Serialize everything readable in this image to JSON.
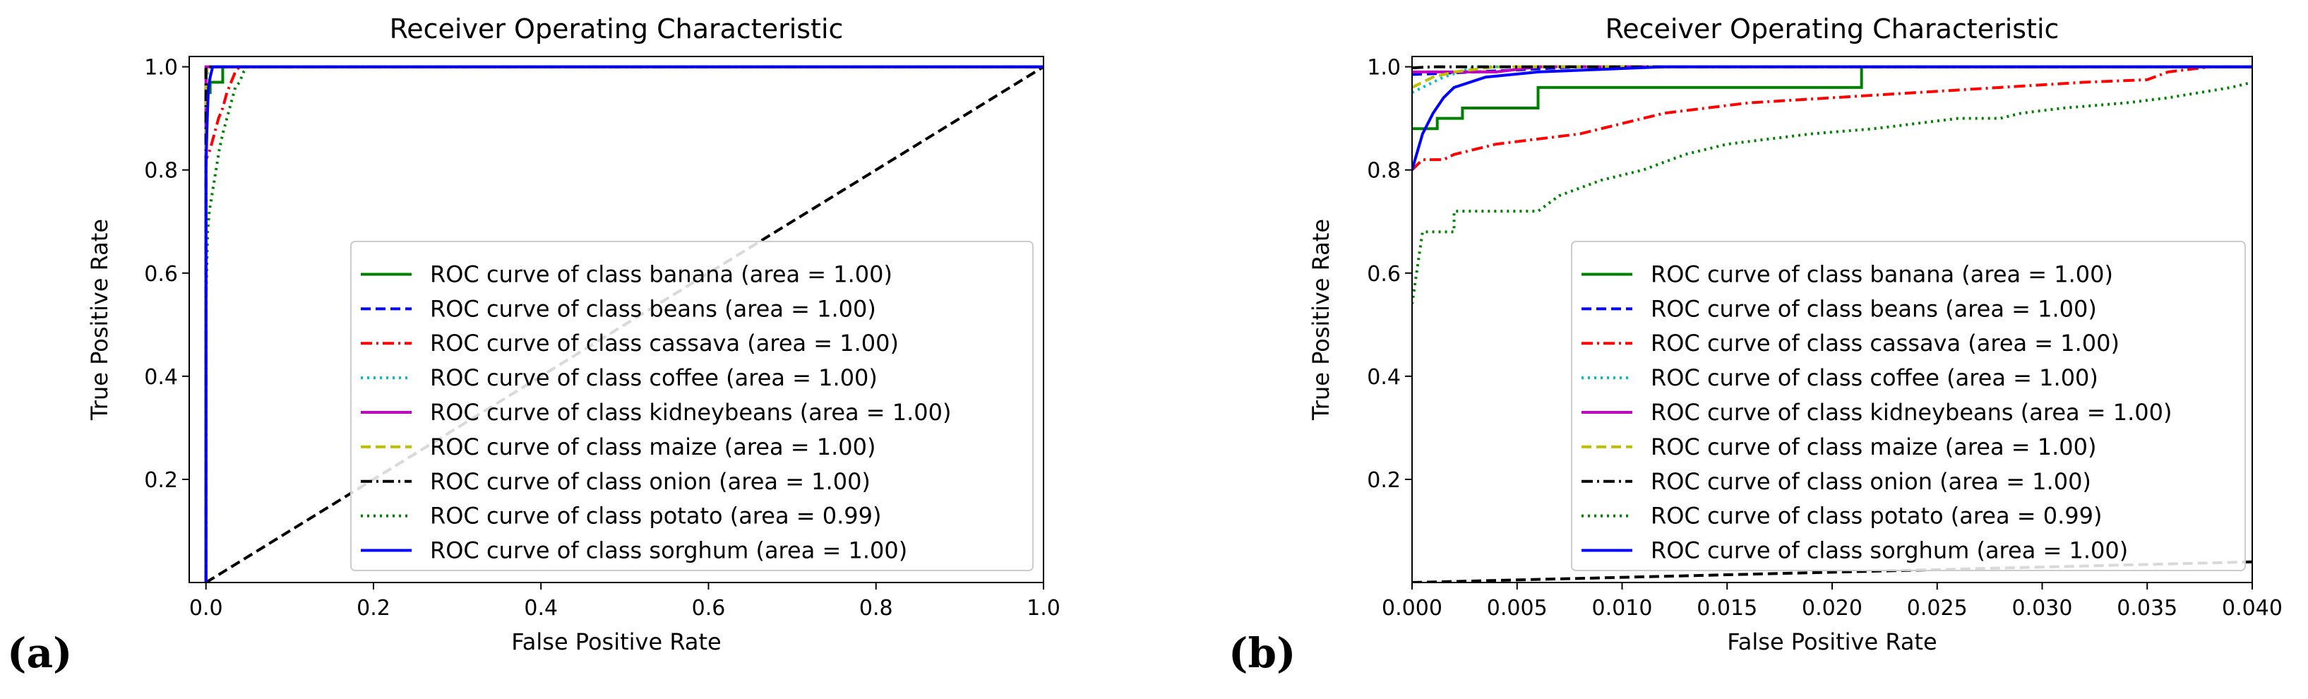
{
  "chart_data": [
    {
      "panel_label": "(a)",
      "type": "line",
      "title": "Receiver Operating Characteristic",
      "xlabel": "False Positive Rate",
      "ylabel": "True Positive Rate",
      "xlim": [
        -0.02,
        1.0
      ],
      "ylim": [
        0.0,
        1.02
      ],
      "xticks": [
        0.0,
        0.2,
        0.4,
        0.6,
        0.8,
        1.0
      ],
      "xtick_labels": [
        "0.0",
        "0.2",
        "0.4",
        "0.6",
        "0.8",
        "1.0"
      ],
      "yticks": [
        0.2,
        0.4,
        0.6,
        0.8,
        1.0
      ],
      "ytick_labels": [
        "0.2",
        "0.4",
        "0.6",
        "0.8",
        "1.0"
      ],
      "legend_position": "lower-right",
      "diagonal": {
        "name": "chance",
        "color": "#000000",
        "dash": "dashed",
        "points": [
          [
            0,
            0
          ],
          [
            1,
            1
          ]
        ]
      },
      "series": [
        {
          "name": "ROC curve of class banana (area = 1.00)",
          "color": "#008000",
          "dash": "solid",
          "points": [
            [
              0,
              0
            ],
            [
              0,
              0.95
            ],
            [
              0.005,
              0.95
            ],
            [
              0.005,
              0.97
            ],
            [
              0.02,
              0.97
            ],
            [
              0.02,
              1.0
            ],
            [
              1.0,
              1.0
            ]
          ]
        },
        {
          "name": "ROC curve of class beans (area = 1.00)",
          "color": "#0000ff",
          "dash": "dashed",
          "points": [
            [
              0,
              0
            ],
            [
              0,
              1.0
            ],
            [
              1.0,
              1.0
            ]
          ]
        },
        {
          "name": "ROC curve of class cassava (area = 1.00)",
          "color": "#ff0000",
          "dash": "dashdot",
          "points": [
            [
              0,
              0
            ],
            [
              0,
              0.82
            ],
            [
              0.005,
              0.84
            ],
            [
              0.01,
              0.87
            ],
            [
              0.015,
              0.9
            ],
            [
              0.02,
              0.92
            ],
            [
              0.025,
              0.95
            ],
            [
              0.03,
              0.97
            ],
            [
              0.035,
              0.99
            ],
            [
              0.04,
              1.0
            ],
            [
              1.0,
              1.0
            ]
          ]
        },
        {
          "name": "ROC curve of class coffee (area = 1.00)",
          "color": "#00bfbf",
          "dash": "dotted",
          "points": [
            [
              0,
              0
            ],
            [
              0,
              0.97
            ],
            [
              0.003,
              1.0
            ],
            [
              1.0,
              1.0
            ]
          ]
        },
        {
          "name": "ROC curve of class kidneybeans (area = 1.00)",
          "color": "#bf00bf",
          "dash": "solid",
          "points": [
            [
              0,
              0
            ],
            [
              0,
              1.0
            ],
            [
              1.0,
              1.0
            ]
          ]
        },
        {
          "name": "ROC curve of class maize (area = 1.00)",
          "color": "#bfbf00",
          "dash": "dashed",
          "points": [
            [
              0,
              0
            ],
            [
              0,
              0.98
            ],
            [
              0.002,
              1.0
            ],
            [
              1.0,
              1.0
            ]
          ]
        },
        {
          "name": "ROC curve of class onion (area = 1.00)",
          "color": "#000000",
          "dash": "dashdot",
          "points": [
            [
              0,
              0
            ],
            [
              0,
              1.0
            ],
            [
              1.0,
              1.0
            ]
          ]
        },
        {
          "name": "ROC curve of class potato (area = 0.99)",
          "color": "#008000",
          "dash": "dotted",
          "points": [
            [
              0,
              0
            ],
            [
              0,
              0.54
            ],
            [
              0.002,
              0.68
            ],
            [
              0.004,
              0.72
            ],
            [
              0.008,
              0.76
            ],
            [
              0.012,
              0.8
            ],
            [
              0.016,
              0.84
            ],
            [
              0.02,
              0.87
            ],
            [
              0.025,
              0.9
            ],
            [
              0.03,
              0.93
            ],
            [
              0.035,
              0.96
            ],
            [
              0.04,
              0.97
            ],
            [
              0.045,
              0.99
            ],
            [
              0.05,
              1.0
            ],
            [
              1.0,
              1.0
            ]
          ]
        },
        {
          "name": "ROC curve of class sorghum (area = 1.00)",
          "color": "#0000ff",
          "dash": "solid",
          "points": [
            [
              0,
              0
            ],
            [
              0,
              0.8
            ],
            [
              0.001,
              0.87
            ],
            [
              0.002,
              0.92
            ],
            [
              0.003,
              0.96
            ],
            [
              0.005,
              0.98
            ],
            [
              0.008,
              1.0
            ],
            [
              1.0,
              1.0
            ]
          ]
        }
      ]
    },
    {
      "panel_label": "(b)",
      "type": "line",
      "title": "Receiver Operating Characteristic",
      "xlabel": "False Positive Rate",
      "ylabel": "True Positive Rate",
      "xlim": [
        0.0,
        0.04
      ],
      "ylim": [
        0.0,
        1.02
      ],
      "xticks": [
        0.0,
        0.005,
        0.01,
        0.015,
        0.02,
        0.025,
        0.03,
        0.035,
        0.04
      ],
      "xtick_labels": [
        "0.000",
        "0.005",
        "0.010",
        "0.015",
        "0.020",
        "0.025",
        "0.030",
        "0.035",
        "0.040"
      ],
      "yticks": [
        0.2,
        0.4,
        0.6,
        0.8,
        1.0
      ],
      "ytick_labels": [
        "0.2",
        "0.4",
        "0.6",
        "0.8",
        "1.0"
      ],
      "legend_position": "lower-right",
      "diagonal": {
        "name": "chance",
        "color": "#000000",
        "dash": "dashed",
        "points": [
          [
            0,
            0
          ],
          [
            1,
            1
          ]
        ]
      },
      "series": [
        {
          "name": "ROC curve of class banana (area = 1.00)",
          "color": "#008000",
          "dash": "solid",
          "points": [
            [
              0,
              0.88
            ],
            [
              0.0012,
              0.88
            ],
            [
              0.0012,
              0.9
            ],
            [
              0.0024,
              0.9
            ],
            [
              0.0024,
              0.92
            ],
            [
              0.006,
              0.92
            ],
            [
              0.006,
              0.96
            ],
            [
              0.0214,
              0.96
            ],
            [
              0.0214,
              1.0
            ],
            [
              0.04,
              1.0
            ]
          ]
        },
        {
          "name": "ROC curve of class beans (area = 1.00)",
          "color": "#0000ff",
          "dash": "dashed",
          "points": [
            [
              0,
              0.985
            ],
            [
              0.003,
              0.99
            ],
            [
              0.008,
              1.0
            ],
            [
              0.04,
              1.0
            ]
          ]
        },
        {
          "name": "ROC curve of class cassava (area = 1.00)",
          "color": "#ff0000",
          "dash": "dashdot",
          "points": [
            [
              0,
              0.8
            ],
            [
              0.0005,
              0.82
            ],
            [
              0.0015,
              0.82
            ],
            [
              0.002,
              0.83
            ],
            [
              0.004,
              0.85
            ],
            [
              0.006,
              0.86
            ],
            [
              0.008,
              0.87
            ],
            [
              0.01,
              0.89
            ],
            [
              0.012,
              0.91
            ],
            [
              0.014,
              0.92
            ],
            [
              0.016,
              0.93
            ],
            [
              0.018,
              0.935
            ],
            [
              0.02,
              0.94
            ],
            [
              0.024,
              0.95
            ],
            [
              0.028,
              0.96
            ],
            [
              0.032,
              0.97
            ],
            [
              0.035,
              0.975
            ],
            [
              0.036,
              0.99
            ],
            [
              0.037,
              0.995
            ],
            [
              0.038,
              1.0
            ],
            [
              0.04,
              1.0
            ]
          ]
        },
        {
          "name": "ROC curve of class coffee (area = 1.00)",
          "color": "#00bfbf",
          "dash": "dotted",
          "points": [
            [
              0,
              0.95
            ],
            [
              0.0005,
              0.96
            ],
            [
              0.0015,
              0.98
            ],
            [
              0.003,
              1.0
            ],
            [
              0.04,
              1.0
            ]
          ]
        },
        {
          "name": "ROC curve of class kidneybeans (area = 1.00)",
          "color": "#bf00bf",
          "dash": "solid",
          "points": [
            [
              0,
              0.99
            ],
            [
              0.004,
              0.99
            ],
            [
              0.006,
              1.0
            ],
            [
              0.04,
              1.0
            ]
          ]
        },
        {
          "name": "ROC curve of class maize (area = 1.00)",
          "color": "#bfbf00",
          "dash": "dashed",
          "points": [
            [
              0,
              0.96
            ],
            [
              0.001,
              0.98
            ],
            [
              0.002,
              0.99
            ],
            [
              0.004,
              1.0
            ],
            [
              0.04,
              1.0
            ]
          ]
        },
        {
          "name": "ROC curve of class onion (area = 1.00)",
          "color": "#000000",
          "dash": "dashdot",
          "points": [
            [
              0,
              0.998
            ],
            [
              0.001,
              1.0
            ],
            [
              0.04,
              1.0
            ]
          ]
        },
        {
          "name": "ROC curve of class potato (area = 0.99)",
          "color": "#008000",
          "dash": "dotted",
          "points": [
            [
              0,
              0.54
            ],
            [
              0.0005,
              0.68
            ],
            [
              0.002,
              0.68
            ],
            [
              0.002,
              0.72
            ],
            [
              0.006,
              0.72
            ],
            [
              0.007,
              0.75
            ],
            [
              0.009,
              0.78
            ],
            [
              0.011,
              0.8
            ],
            [
              0.013,
              0.83
            ],
            [
              0.015,
              0.85
            ],
            [
              0.017,
              0.86
            ],
            [
              0.019,
              0.87
            ],
            [
              0.022,
              0.88
            ],
            [
              0.024,
              0.89
            ],
            [
              0.026,
              0.9
            ],
            [
              0.028,
              0.9
            ],
            [
              0.029,
              0.91
            ],
            [
              0.031,
              0.92
            ],
            [
              0.034,
              0.93
            ],
            [
              0.036,
              0.94
            ],
            [
              0.039,
              0.96
            ],
            [
              0.04,
              0.97
            ]
          ]
        },
        {
          "name": "ROC curve of class sorghum (area = 1.00)",
          "color": "#0000ff",
          "dash": "solid",
          "points": [
            [
              0,
              0.8
            ],
            [
              0.0005,
              0.87
            ],
            [
              0.001,
              0.91
            ],
            [
              0.0015,
              0.94
            ],
            [
              0.002,
              0.96
            ],
            [
              0.0035,
              0.98
            ],
            [
              0.006,
              0.99
            ],
            [
              0.012,
              1.0
            ],
            [
              0.04,
              1.0
            ]
          ]
        }
      ]
    }
  ]
}
